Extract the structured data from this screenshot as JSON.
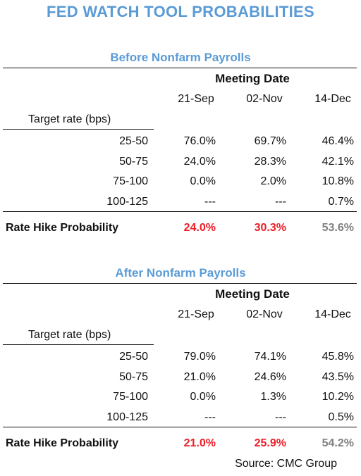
{
  "title": "FED WATCH TOOL PROBABILITIES",
  "colors": {
    "heading": "#5b9bd5",
    "highlight_red": "#ee1c25",
    "highlight_gray": "#7f7f7f"
  },
  "chart_data": [
    {
      "type": "table",
      "title": "Before Nonfarm Payrolls",
      "column_group_label": "Meeting Date",
      "row_header_label": "Target rate (bps)",
      "columns": [
        "21-Sep",
        "02-Nov",
        "14-Dec"
      ],
      "rows": [
        {
          "label": "25-50",
          "values": [
            "76.0%",
            "69.7%",
            "46.4%"
          ]
        },
        {
          "label": "50-75",
          "values": [
            "24.0%",
            "28.3%",
            "42.1%"
          ]
        },
        {
          "label": "75-100",
          "values": [
            "0.0%",
            "2.0%",
            "10.8%"
          ]
        },
        {
          "label": "100-125",
          "values": [
            "---",
            "---",
            "0.7%"
          ]
        }
      ],
      "summary": {
        "label": "Rate Hike Probability",
        "values": [
          "24.0%",
          "30.3%",
          "53.6%"
        ]
      }
    },
    {
      "type": "table",
      "title": "After Nonfarm Payrolls",
      "column_group_label": "Meeting Date",
      "row_header_label": "Target rate (bps)",
      "columns": [
        "21-Sep",
        "02-Nov",
        "14-Dec"
      ],
      "rows": [
        {
          "label": "25-50",
          "values": [
            "79.0%",
            "74.1%",
            "45.8%"
          ]
        },
        {
          "label": "50-75",
          "values": [
            "21.0%",
            "24.6%",
            "43.5%"
          ]
        },
        {
          "label": "75-100",
          "values": [
            "0.0%",
            "1.3%",
            "10.2%"
          ]
        },
        {
          "label": "100-125",
          "values": [
            "---",
            "---",
            "0.5%"
          ]
        }
      ],
      "summary": {
        "label": "Rate Hike Probability",
        "values": [
          "21.0%",
          "25.9%",
          "54.2%"
        ]
      }
    }
  ],
  "source": "Source: CMC Group"
}
